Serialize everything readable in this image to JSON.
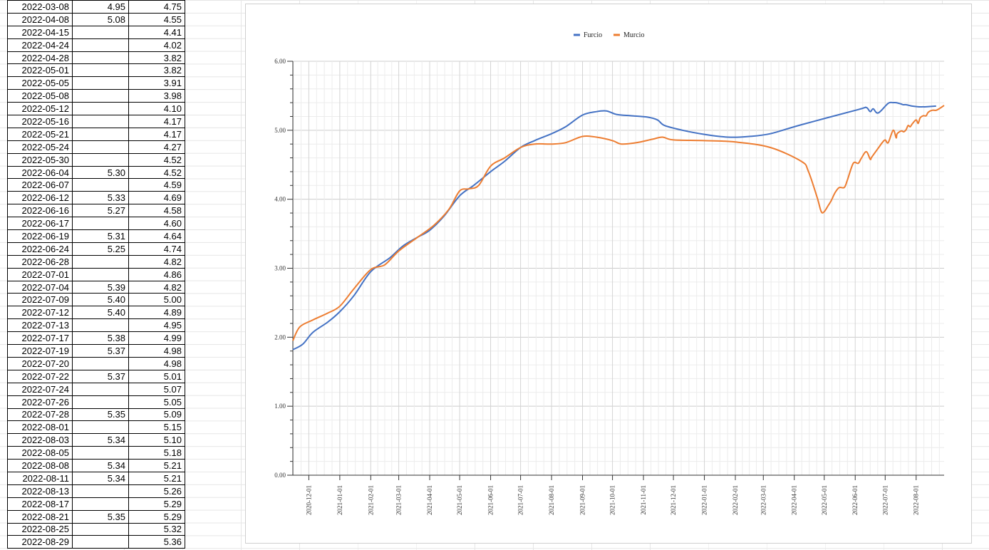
{
  "table": {
    "rows": [
      {
        "date": "2022-03-08",
        "a": "4.95",
        "b": "4.75"
      },
      {
        "date": "2022-04-08",
        "a": "5.08",
        "b": "4.55"
      },
      {
        "date": "2022-04-15",
        "a": "",
        "b": "4.41"
      },
      {
        "date": "2022-04-24",
        "a": "",
        "b": "4.02"
      },
      {
        "date": "2022-04-28",
        "a": "",
        "b": "3.82"
      },
      {
        "date": "2022-05-01",
        "a": "",
        "b": "3.82"
      },
      {
        "date": "2022-05-05",
        "a": "",
        "b": "3.91"
      },
      {
        "date": "2022-05-08",
        "a": "",
        "b": "3.98"
      },
      {
        "date": "2022-05-12",
        "a": "",
        "b": "4.10"
      },
      {
        "date": "2022-05-16",
        "a": "",
        "b": "4.17"
      },
      {
        "date": "2022-05-21",
        "a": "",
        "b": "4.17"
      },
      {
        "date": "2022-05-24",
        "a": "",
        "b": "4.27"
      },
      {
        "date": "2022-05-30",
        "a": "",
        "b": "4.52"
      },
      {
        "date": "2022-06-04",
        "a": "5.30",
        "b": "4.52"
      },
      {
        "date": "2022-06-07",
        "a": "",
        "b": "4.59"
      },
      {
        "date": "2022-06-12",
        "a": "5.33",
        "b": "4.69"
      },
      {
        "date": "2022-06-16",
        "a": "5.27",
        "b": "4.58"
      },
      {
        "date": "2022-06-17",
        "a": "",
        "b": "4.60"
      },
      {
        "date": "2022-06-19",
        "a": "5.31",
        "b": "4.64"
      },
      {
        "date": "2022-06-24",
        "a": "5.25",
        "b": "4.74"
      },
      {
        "date": "2022-06-28",
        "a": "",
        "b": "4.82"
      },
      {
        "date": "2022-07-01",
        "a": "",
        "b": "4.86"
      },
      {
        "date": "2022-07-04",
        "a": "5.39",
        "b": "4.82"
      },
      {
        "date": "2022-07-09",
        "a": "5.40",
        "b": "5.00"
      },
      {
        "date": "2022-07-12",
        "a": "5.40",
        "b": "4.89"
      },
      {
        "date": "2022-07-13",
        "a": "",
        "b": "4.95"
      },
      {
        "date": "2022-07-17",
        "a": "5.38",
        "b": "4.99"
      },
      {
        "date": "2022-07-19",
        "a": "5.37",
        "b": "4.98"
      },
      {
        "date": "2022-07-20",
        "a": "",
        "b": "4.98"
      },
      {
        "date": "2022-07-22",
        "a": "5.37",
        "b": "5.01"
      },
      {
        "date": "2022-07-24",
        "a": "",
        "b": "5.07"
      },
      {
        "date": "2022-07-26",
        "a": "",
        "b": "5.05"
      },
      {
        "date": "2022-07-28",
        "a": "5.35",
        "b": "5.09"
      },
      {
        "date": "2022-08-01",
        "a": "",
        "b": "5.15"
      },
      {
        "date": "2022-08-03",
        "a": "5.34",
        "b": "5.10"
      },
      {
        "date": "2022-08-05",
        "a": "",
        "b": "5.18"
      },
      {
        "date": "2022-08-08",
        "a": "5.34",
        "b": "5.21"
      },
      {
        "date": "2022-08-11",
        "a": "5.34",
        "b": "5.21"
      },
      {
        "date": "2022-08-13",
        "a": "",
        "b": "5.26"
      },
      {
        "date": "2022-08-17",
        "a": "",
        "b": "5.29"
      },
      {
        "date": "2022-08-21",
        "a": "5.35",
        "b": "5.29"
      },
      {
        "date": "2022-08-25",
        "a": "",
        "b": "5.32"
      },
      {
        "date": "2022-08-29",
        "a": "",
        "b": "5.36"
      }
    ]
  },
  "chart_data": {
    "type": "line",
    "title": "",
    "xlabel": "",
    "ylabel": "",
    "legend_position": "top-center",
    "grid": true,
    "ylim": [
      0,
      6
    ],
    "xlim": [
      "2020-11-15",
      "2022-08-29"
    ],
    "y_ticks": [
      "0.00",
      "1.00",
      "2.00",
      "3.00",
      "4.00",
      "5.00",
      "6.00"
    ],
    "x_ticks": [
      "2020-12-01",
      "2021-01-01",
      "2021-02-01",
      "2021-03-01",
      "2021-04-01",
      "2021-05-01",
      "2021-06-01",
      "2021-07-01",
      "2021-08-01",
      "2021-09-01",
      "2021-10-01",
      "2021-11-01",
      "2021-12-01",
      "2022-01-01",
      "2022-02-01",
      "2022-03-01",
      "2022-04-01",
      "2022-05-01",
      "2022-06-01",
      "2022-07-01",
      "2022-08-01"
    ],
    "series": [
      {
        "name": "Furcio",
        "color": "#4472c4",
        "points": [
          [
            "2020-11-15",
            1.82
          ],
          [
            "2020-11-25",
            1.9
          ],
          [
            "2020-12-05",
            2.07
          ],
          [
            "2020-12-20",
            2.22
          ],
          [
            "2021-01-01",
            2.37
          ],
          [
            "2021-01-15",
            2.6
          ],
          [
            "2021-02-01",
            2.95
          ],
          [
            "2021-02-20",
            3.15
          ],
          [
            "2021-03-05",
            3.32
          ],
          [
            "2021-03-20",
            3.45
          ],
          [
            "2021-04-01",
            3.55
          ],
          [
            "2021-04-15",
            3.75
          ],
          [
            "2021-05-01",
            4.05
          ],
          [
            "2021-05-15",
            4.2
          ],
          [
            "2021-06-01",
            4.4
          ],
          [
            "2021-06-15",
            4.55
          ],
          [
            "2021-07-01",
            4.75
          ],
          [
            "2021-07-15",
            4.85
          ],
          [
            "2021-08-01",
            4.95
          ],
          [
            "2021-08-15",
            5.05
          ],
          [
            "2021-09-01",
            5.22
          ],
          [
            "2021-09-15",
            5.27
          ],
          [
            "2021-09-25",
            5.28
          ],
          [
            "2021-10-05",
            5.23
          ],
          [
            "2021-10-20",
            5.21
          ],
          [
            "2021-11-05",
            5.19
          ],
          [
            "2021-11-15",
            5.15
          ],
          [
            "2021-11-22",
            5.07
          ],
          [
            "2021-12-10",
            5.0
          ],
          [
            "2022-01-01",
            4.94
          ],
          [
            "2022-01-25",
            4.9
          ],
          [
            "2022-02-15",
            4.91
          ],
          [
            "2022-03-08",
            4.95
          ],
          [
            "2022-04-08",
            5.08
          ],
          [
            "2022-06-04",
            5.3
          ],
          [
            "2022-06-12",
            5.33
          ],
          [
            "2022-06-16",
            5.27
          ],
          [
            "2022-06-19",
            5.31
          ],
          [
            "2022-06-24",
            5.25
          ],
          [
            "2022-07-04",
            5.39
          ],
          [
            "2022-07-09",
            5.4
          ],
          [
            "2022-07-12",
            5.4
          ],
          [
            "2022-07-17",
            5.38
          ],
          [
            "2022-07-19",
            5.37
          ],
          [
            "2022-07-22",
            5.37
          ],
          [
            "2022-07-28",
            5.35
          ],
          [
            "2022-08-03",
            5.34
          ],
          [
            "2022-08-08",
            5.34
          ],
          [
            "2022-08-11",
            5.34
          ],
          [
            "2022-08-21",
            5.35
          ]
        ]
      },
      {
        "name": "Murcio",
        "color": "#ed7d31",
        "points": [
          [
            "2020-11-15",
            1.95
          ],
          [
            "2020-11-22",
            2.15
          ],
          [
            "2020-12-05",
            2.25
          ],
          [
            "2020-12-20",
            2.35
          ],
          [
            "2021-01-01",
            2.45
          ],
          [
            "2021-01-15",
            2.7
          ],
          [
            "2021-02-01",
            2.98
          ],
          [
            "2021-02-15",
            3.05
          ],
          [
            "2021-03-01",
            3.25
          ],
          [
            "2021-03-20",
            3.45
          ],
          [
            "2021-04-05",
            3.62
          ],
          [
            "2021-04-20",
            3.85
          ],
          [
            "2021-05-01",
            4.12
          ],
          [
            "2021-05-10",
            4.15
          ],
          [
            "2021-05-20",
            4.2
          ],
          [
            "2021-06-01",
            4.48
          ],
          [
            "2021-06-15",
            4.6
          ],
          [
            "2021-07-01",
            4.75
          ],
          [
            "2021-07-15",
            4.8
          ],
          [
            "2021-08-01",
            4.8
          ],
          [
            "2021-08-15",
            4.82
          ],
          [
            "2021-09-01",
            4.91
          ],
          [
            "2021-09-15",
            4.9
          ],
          [
            "2021-10-01",
            4.85
          ],
          [
            "2021-10-10",
            4.8
          ],
          [
            "2021-10-25",
            4.82
          ],
          [
            "2021-11-10",
            4.87
          ],
          [
            "2021-11-20",
            4.9
          ],
          [
            "2021-12-01",
            4.86
          ],
          [
            "2022-01-01",
            4.85
          ],
          [
            "2022-02-01",
            4.83
          ],
          [
            "2022-03-08",
            4.75
          ],
          [
            "2022-04-08",
            4.55
          ],
          [
            "2022-04-15",
            4.41
          ],
          [
            "2022-04-24",
            4.02
          ],
          [
            "2022-04-28",
            3.82
          ],
          [
            "2022-05-01",
            3.82
          ],
          [
            "2022-05-05",
            3.91
          ],
          [
            "2022-05-08",
            3.98
          ],
          [
            "2022-05-12",
            4.1
          ],
          [
            "2022-05-16",
            4.17
          ],
          [
            "2022-05-21",
            4.17
          ],
          [
            "2022-05-24",
            4.27
          ],
          [
            "2022-05-30",
            4.52
          ],
          [
            "2022-06-04",
            4.52
          ],
          [
            "2022-06-07",
            4.59
          ],
          [
            "2022-06-12",
            4.69
          ],
          [
            "2022-06-16",
            4.58
          ],
          [
            "2022-06-17",
            4.6
          ],
          [
            "2022-06-19",
            4.64
          ],
          [
            "2022-06-24",
            4.74
          ],
          [
            "2022-06-28",
            4.82
          ],
          [
            "2022-07-01",
            4.86
          ],
          [
            "2022-07-04",
            4.82
          ],
          [
            "2022-07-09",
            5.0
          ],
          [
            "2022-07-12",
            4.89
          ],
          [
            "2022-07-13",
            4.95
          ],
          [
            "2022-07-17",
            4.99
          ],
          [
            "2022-07-19",
            4.98
          ],
          [
            "2022-07-20",
            4.98
          ],
          [
            "2022-07-22",
            5.01
          ],
          [
            "2022-07-24",
            5.07
          ],
          [
            "2022-07-26",
            5.05
          ],
          [
            "2022-07-28",
            5.09
          ],
          [
            "2022-08-01",
            5.15
          ],
          [
            "2022-08-03",
            5.1
          ],
          [
            "2022-08-05",
            5.18
          ],
          [
            "2022-08-08",
            5.21
          ],
          [
            "2022-08-11",
            5.21
          ],
          [
            "2022-08-13",
            5.26
          ],
          [
            "2022-08-17",
            5.29
          ],
          [
            "2022-08-21",
            5.29
          ],
          [
            "2022-08-25",
            5.32
          ],
          [
            "2022-08-29",
            5.36
          ]
        ]
      }
    ]
  }
}
